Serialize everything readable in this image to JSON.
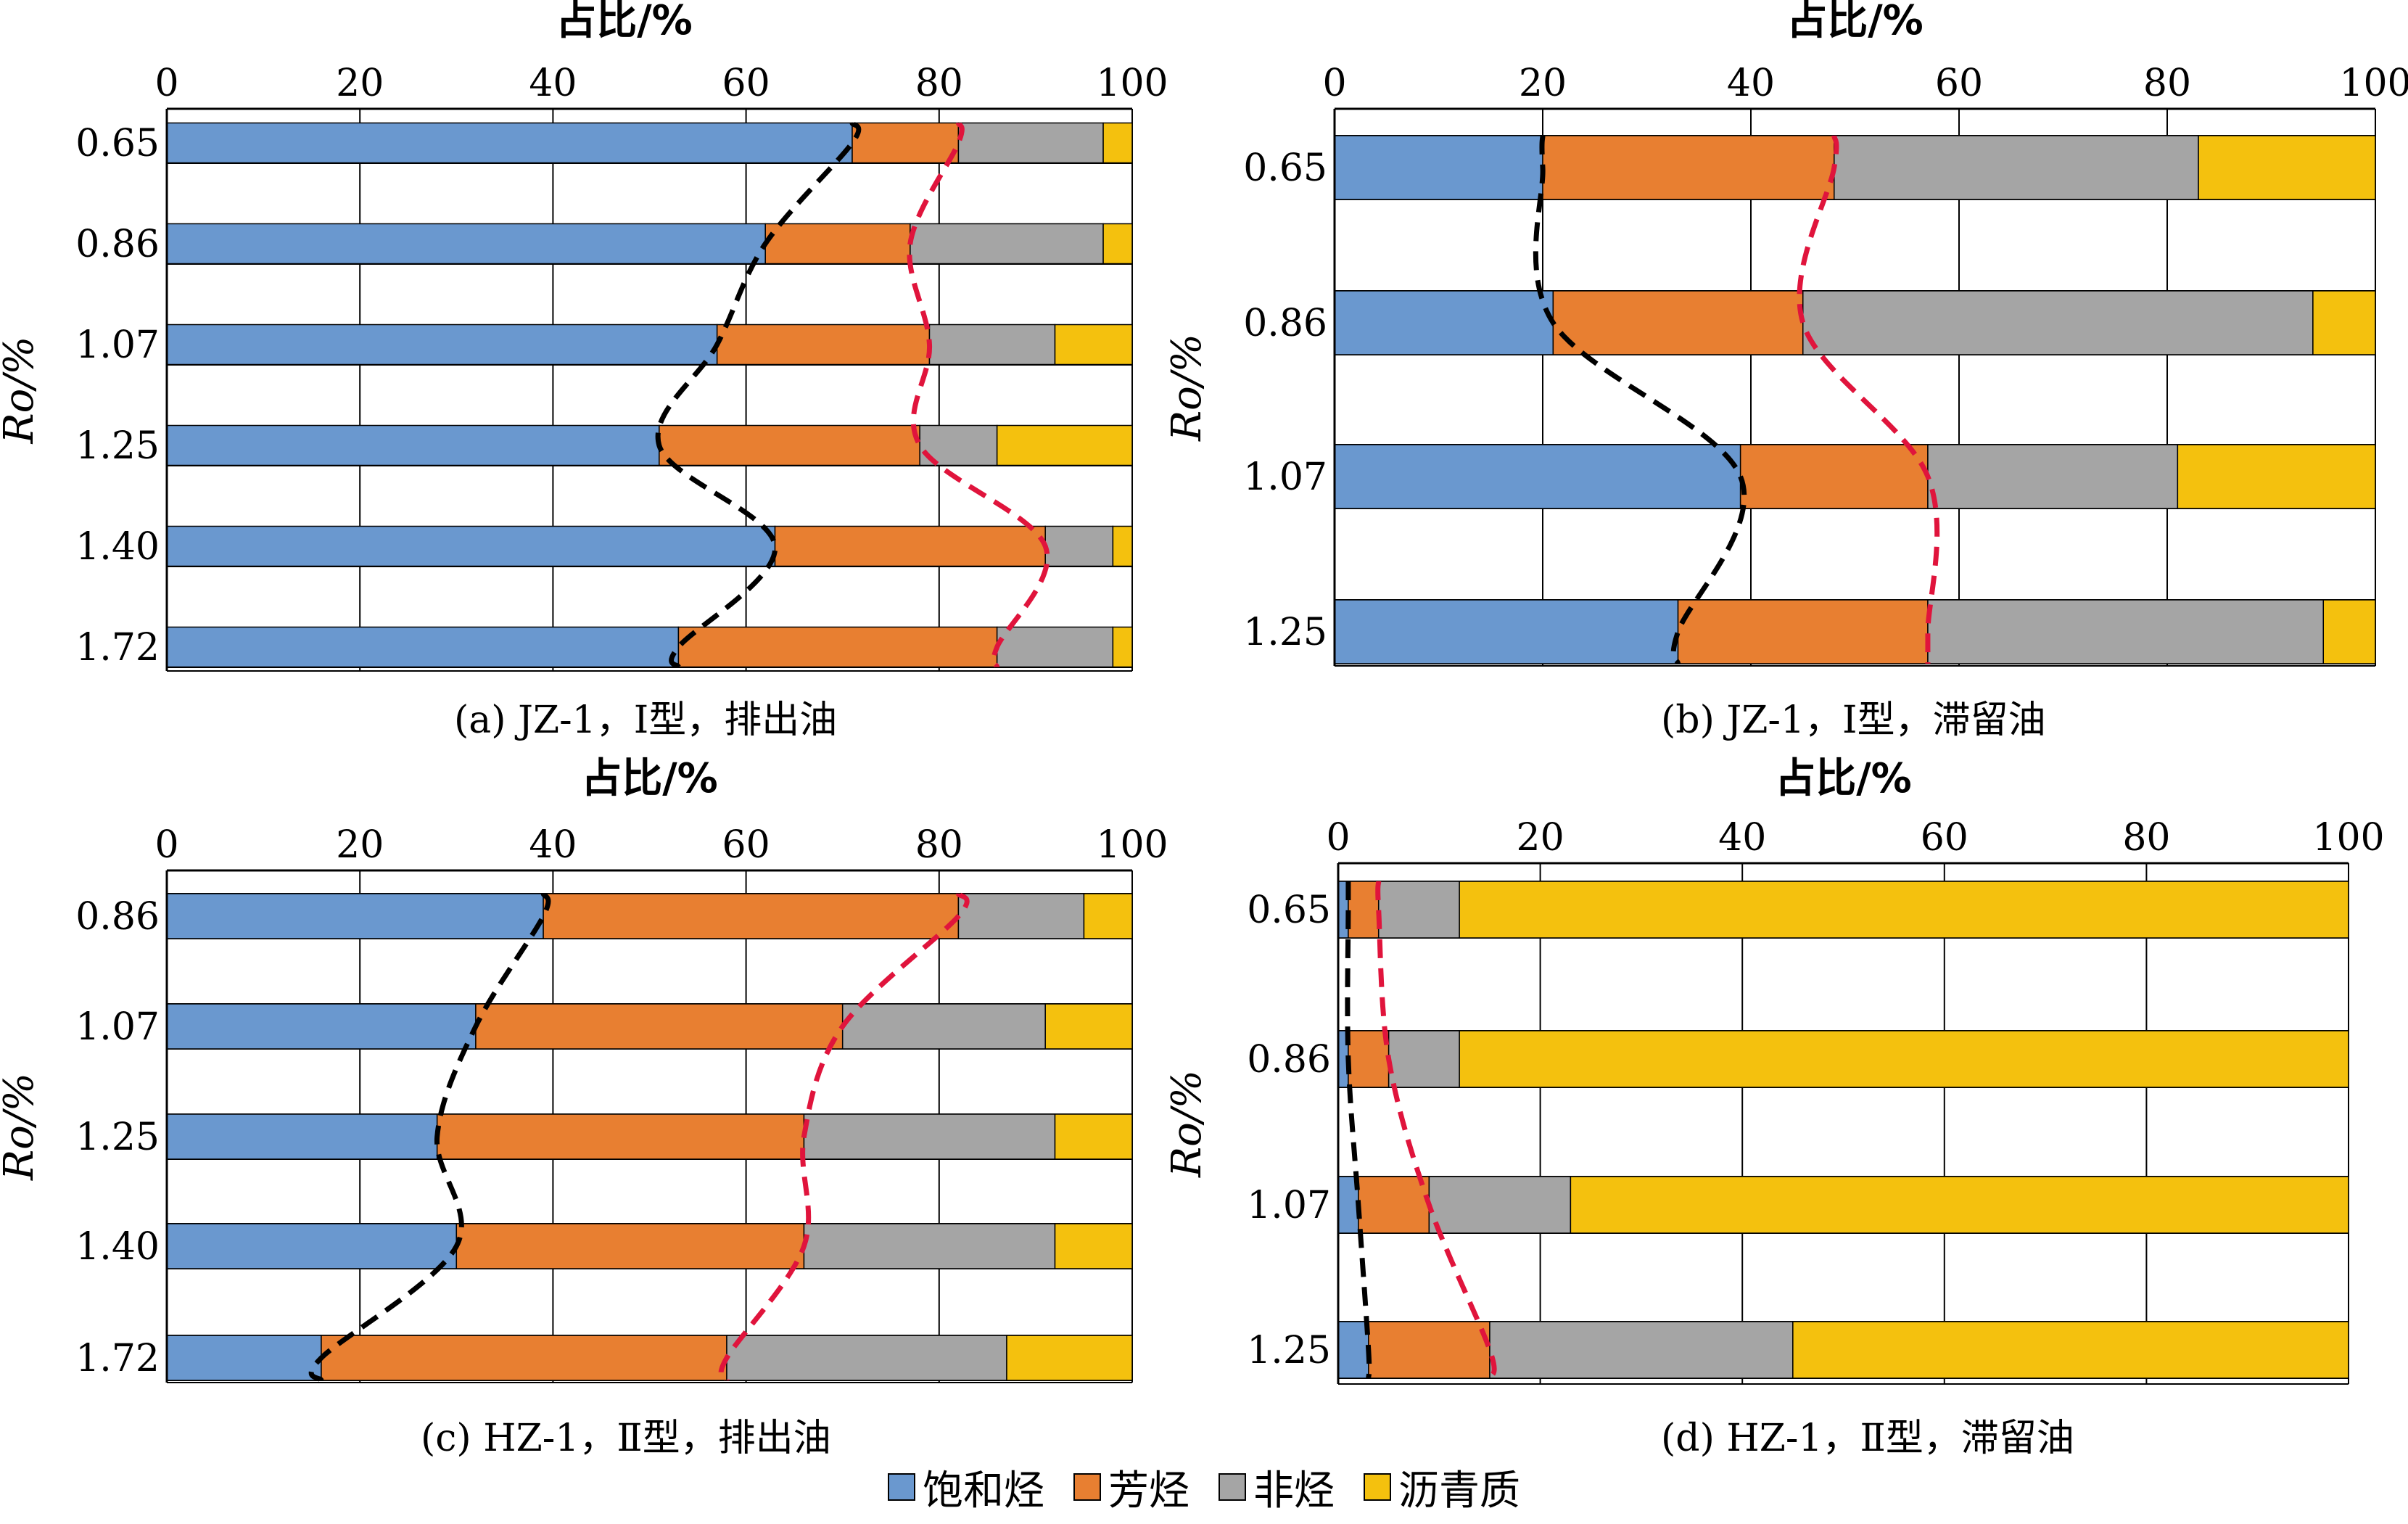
{
  "colors": {
    "saturates": "#6a98cf",
    "aromatics": "#e87f31",
    "resins": "#a5a5a5",
    "asphaltenes": "#f4c10e"
  },
  "legend": [
    {
      "label": "饱和烃",
      "color": "#6a98cf"
    },
    {
      "label": "芳烃",
      "color": "#e87f31"
    },
    {
      "label": "非烃",
      "color": "#a5a5a5"
    },
    {
      "label": "沥青质",
      "color": "#f4c10e"
    }
  ],
  "chart_data": [
    {
      "type": "bar",
      "orientation": "horizontal-stacked",
      "caption": "(a) JZ-1，Ⅰ型，排出油",
      "xlabel": "占比/%",
      "ylabel": "Ro/%",
      "xlim": [
        0,
        100
      ],
      "x_ticks": [
        "0",
        "20",
        "40",
        "60",
        "80",
        "100"
      ],
      "categories": [
        "0.65",
        "0.86",
        "1.07",
        "1.25",
        "1.40",
        "1.72"
      ],
      "series": [
        {
          "name": "饱和烃",
          "values": [
            71,
            62,
            57,
            51,
            63,
            53
          ]
        },
        {
          "name": "芳烃",
          "values": [
            11,
            15,
            22,
            27,
            28,
            33
          ]
        },
        {
          "name": "非烃",
          "values": [
            15,
            20,
            13,
            8,
            7,
            12
          ]
        },
        {
          "name": "沥青质",
          "values": [
            3,
            3,
            8,
            14,
            2,
            2
          ]
        }
      ]
    },
    {
      "type": "bar",
      "orientation": "horizontal-stacked",
      "caption": "(b) JZ-1，Ⅰ型，滞留油",
      "xlabel": "占比/%",
      "ylabel": "Ro/%",
      "xlim": [
        0,
        100
      ],
      "x_ticks": [
        "0",
        "20",
        "40",
        "60",
        "80",
        "100"
      ],
      "categories": [
        "0.65",
        "0.86",
        "1.07",
        "1.25"
      ],
      "series": [
        {
          "name": "饱和烃",
          "values": [
            20,
            21,
            39,
            33
          ]
        },
        {
          "name": "芳烃",
          "values": [
            28,
            24,
            18,
            24
          ]
        },
        {
          "name": "非烃",
          "values": [
            35,
            49,
            24,
            38
          ]
        },
        {
          "name": "沥青质",
          "values": [
            17,
            6,
            19,
            5
          ]
        }
      ]
    },
    {
      "type": "bar",
      "orientation": "horizontal-stacked",
      "caption": "(c) HZ-1，Ⅱ型，排出油",
      "xlabel": "占比/%",
      "ylabel": "Ro/%",
      "xlim": [
        0,
        100
      ],
      "x_ticks": [
        "0",
        "20",
        "40",
        "60",
        "80",
        "100"
      ],
      "categories": [
        "0.86",
        "1.07",
        "1.25",
        "1.40",
        "1.72"
      ],
      "series": [
        {
          "name": "饱和烃",
          "values": [
            39,
            32,
            28,
            30,
            16
          ]
        },
        {
          "name": "芳烃",
          "values": [
            43,
            38,
            38,
            36,
            42
          ]
        },
        {
          "name": "非烃",
          "values": [
            13,
            21,
            26,
            26,
            29
          ]
        },
        {
          "name": "沥青质",
          "values": [
            5,
            9,
            8,
            8,
            13
          ]
        }
      ]
    },
    {
      "type": "bar",
      "orientation": "horizontal-stacked",
      "caption": "(d) HZ-1，Ⅱ型，滞留油",
      "xlabel": "占比/%",
      "ylabel": "Ro/%",
      "xlim": [
        0,
        100
      ],
      "x_ticks": [
        "0",
        "20",
        "40",
        "60",
        "80",
        "100"
      ],
      "categories": [
        "0.65",
        "0.86",
        "1.07",
        "1.25"
      ],
      "series": [
        {
          "name": "饱和烃",
          "values": [
            1,
            1,
            2,
            3
          ]
        },
        {
          "name": "芳烃",
          "values": [
            3,
            4,
            7,
            12
          ]
        },
        {
          "name": "非烃",
          "values": [
            8,
            7,
            14,
            30
          ]
        },
        {
          "name": "沥青质",
          "values": [
            88,
            88,
            77,
            55
          ]
        }
      ]
    }
  ]
}
